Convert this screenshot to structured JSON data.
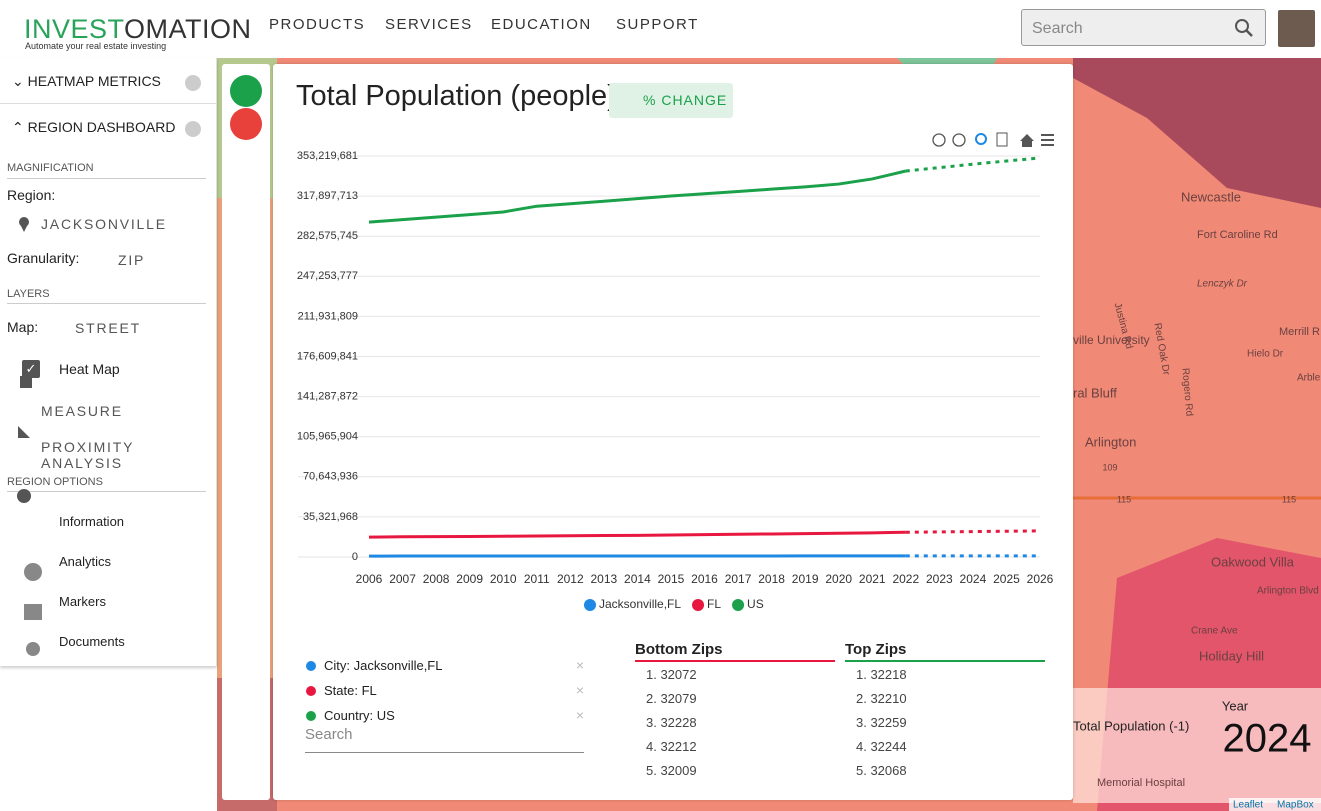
{
  "header": {
    "logo_a": "INVEST",
    "logo_b": "OMATION",
    "tagline": "Automate your real estate investing",
    "nav": [
      "PRODUCTS",
      "SERVICES",
      "EDUCATION",
      "SUPPORT"
    ],
    "search_placeholder": "Search"
  },
  "sidebar": {
    "heatmap_metrics": "HEATMAP METRICS",
    "region_dashboard": "REGION DASHBOARD",
    "magnification": "MAGNIFICATION",
    "region_label": "Region:",
    "region": "JACKSONVILLE",
    "granularity_label": "Granularity:",
    "granularity": "ZIP",
    "layers": "LAYERS",
    "map_label": "Map:",
    "map": "STREET",
    "heat_map": "Heat Map",
    "measure": "MEASURE",
    "proximity": "PROXIMITY ANALYSIS",
    "region_options": "REGION OPTIONS",
    "options": [
      "Information",
      "Analytics",
      "Markers",
      "Documents"
    ]
  },
  "chart_data": {
    "type": "line",
    "title": "Total Population (people)",
    "toggle": "% CHANGE",
    "categories": [
      "2006",
      "2007",
      "2008",
      "2009",
      "2010",
      "2011",
      "2012",
      "2013",
      "2014",
      "2015",
      "2016",
      "2017",
      "2018",
      "2019",
      "2020",
      "2021",
      "2022",
      "2023",
      "2024",
      "2025",
      "2026"
    ],
    "dashed_from": "2022",
    "series": [
      {
        "name": "Jacksonville,FL",
        "color": "#1e88e5",
        "values": [
          820000,
          830000,
          840000,
          845000,
          850000,
          860000,
          870000,
          880000,
          890000,
          900000,
          910000,
          920000,
          930000,
          940000,
          950000,
          960000,
          980000,
          990000,
          1000000,
          1010000,
          1020000
        ]
      },
      {
        "name": "FL",
        "color": "#e8173f",
        "values": [
          17500000,
          17800000,
          18000000,
          18100000,
          18300000,
          18500000,
          18700000,
          18900000,
          19100000,
          19400000,
          19700000,
          20000000,
          20300000,
          20600000,
          20900000,
          21300000,
          21800000,
          22100000,
          22400000,
          22700000,
          23000000
        ]
      },
      {
        "name": "US",
        "color": "#1aa14a",
        "values": [
          295000000,
          297200000,
          299400000,
          301600000,
          303900000,
          309000000,
          311200000,
          313400000,
          315700000,
          318000000,
          320000000,
          322000000,
          324000000,
          326000000,
          328500000,
          333000000,
          340000000,
          343000000,
          346000000,
          348800000,
          351500000
        ]
      }
    ],
    "ylim": [
      0,
      353219681
    ],
    "yticks": [
      0,
      {
        "value": 35321968,
        "label": "35,321,968"
      },
      {
        "value": 70643936,
        "label": "70,643,936"
      },
      {
        "value": 105965904,
        "label": "105,965,904"
      },
      {
        "value": 141287872,
        "label": "141,287,872"
      },
      {
        "value": 176609841,
        "label": "176,609,841"
      },
      {
        "value": 211931809,
        "label": "211,931,809"
      },
      {
        "value": 247253777,
        "label": "247,253,777"
      },
      {
        "value": 282575745,
        "label": "282,575,745"
      },
      {
        "value": 317897713,
        "label": "317,897,713"
      },
      {
        "value": 353219681,
        "label": "353,219,681"
      }
    ],
    "grid": true
  },
  "comparison": {
    "items": [
      "City: Jacksonville,FL",
      "State: FL",
      "Country: US"
    ],
    "colors": [
      "#1e88e5",
      "#e8173f",
      "#1aa14a"
    ],
    "search_placeholder": "Search"
  },
  "bottom_zips": {
    "title": "Bottom Zips",
    "items": [
      "1. 32072",
      "2. 32079",
      "3. 32228",
      "4. 32212",
      "5. 32009"
    ]
  },
  "top_zips": {
    "title": "Top Zips",
    "items": [
      "1. 32218",
      "2. 32210",
      "3. 32259",
      "4. 32244",
      "5. 32068"
    ]
  },
  "map": {
    "labels": [
      "Newcastle",
      "Fort Caroline Rd",
      "Lenczyk Dr",
      "Justina Rd",
      "Red Oak Dr",
      "Rogero Rd",
      "Merrill R",
      "Hielo Dr",
      "Arble",
      "ville University",
      "ral Bluff",
      "Arlington",
      "109",
      "115",
      "115",
      "Oakwood Villa",
      "Crane Ave",
      "Holiday Hill",
      "Memorial Hospital",
      "Arlington Blvd"
    ],
    "legend_label": "Total Population (-1)",
    "year_label": "Year",
    "year": "2024",
    "attribution_a": "Leaflet",
    "attribution_b": "MapBox"
  }
}
